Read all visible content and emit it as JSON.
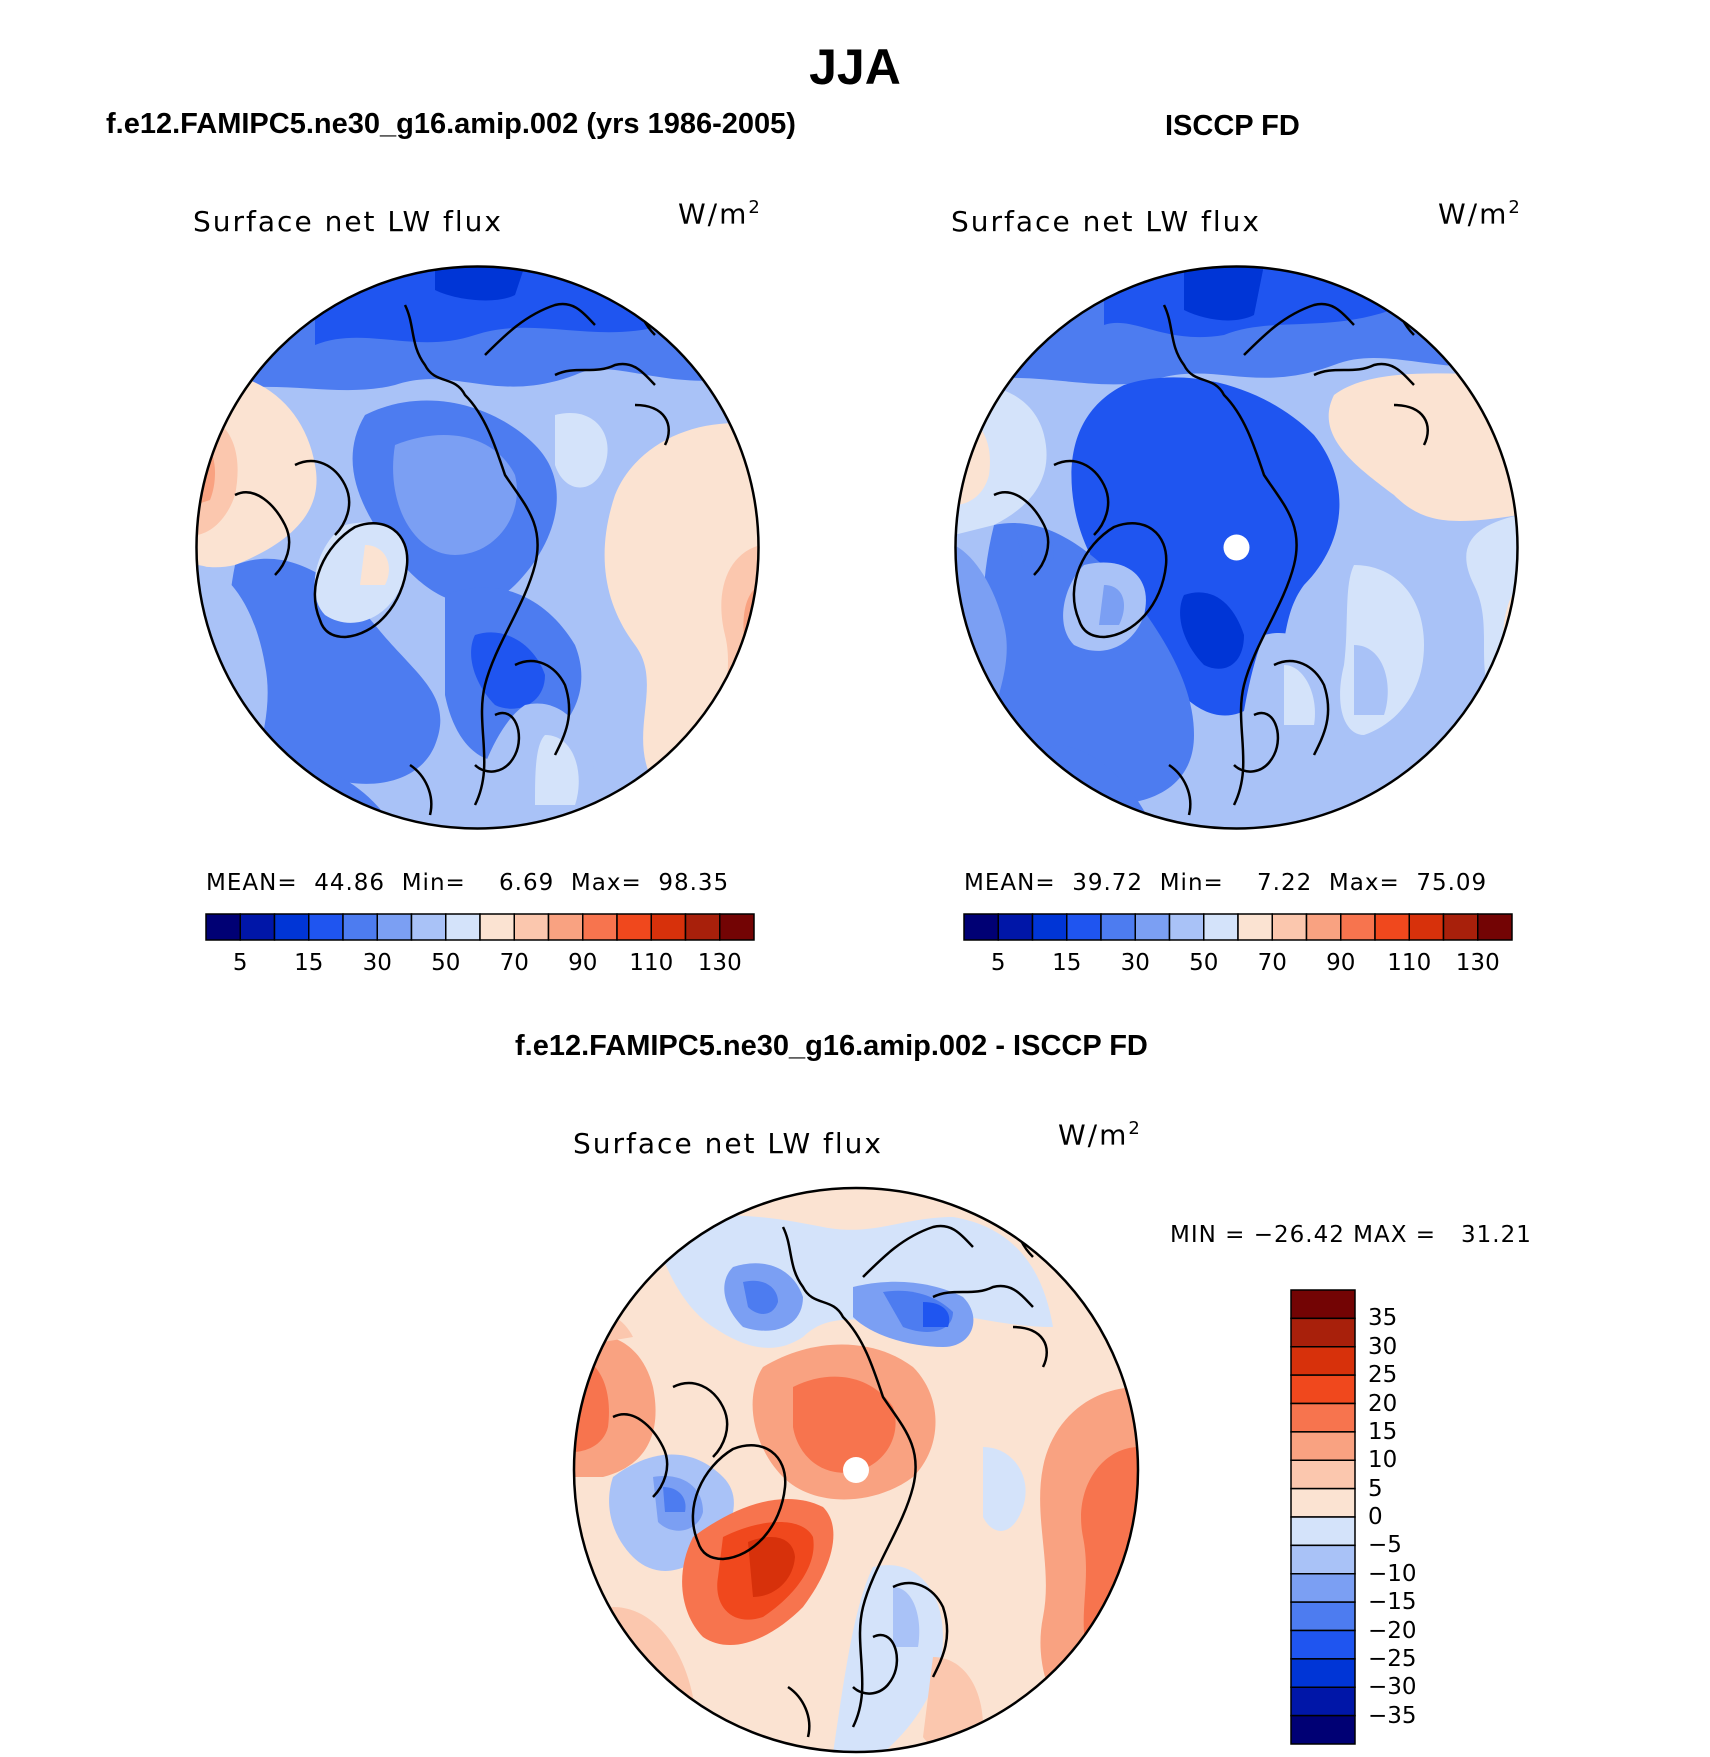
{
  "figure": {
    "title": "JJA"
  },
  "panels": [
    {
      "title": "f.e12.FAMIPC5.ne30_g16.amip.002 (yrs 1986-2005)",
      "variable": "Surface net LW flux",
      "units_base": "W/m",
      "units_exp": "2",
      "stats": {
        "mean_label": "MEAN=",
        "mean": "44.86",
        "min_label": "Min=",
        "min": "6.69",
        "max_label": "Max=",
        "max": "98.35"
      }
    },
    {
      "title": "ISCCP FD",
      "variable": "Surface net LW flux",
      "units_base": "W/m",
      "units_exp": "2",
      "stats": {
        "mean_label": "MEAN=",
        "mean": "39.72",
        "min_label": "Min=",
        "min": "7.22",
        "max_label": "Max=",
        "max": "75.09"
      }
    },
    {
      "title": "f.e12.FAMIPC5.ne30_g16.amip.002 - ISCCP FD",
      "variable": "Surface net LW flux",
      "units_base": "W/m",
      "units_exp": "2",
      "stats_text": "MIN = −26.42 MAX =   31.21"
    }
  ],
  "colorbar_abs": {
    "colors": [
      "#000074",
      "#0016a8",
      "#0035d6",
      "#1f55f0",
      "#4d7cf0",
      "#7b9ff3",
      "#a9c2f7",
      "#d4e3fa",
      "#fbe3d2",
      "#fbc7ae",
      "#f9a281",
      "#f7744e",
      "#f0481d",
      "#d7310b",
      "#a8200b",
      "#730404"
    ],
    "tick_labels": [
      "5",
      "15",
      "30",
      "50",
      "70",
      "90",
      "110",
      "130"
    ]
  },
  "colorbar_diff": {
    "colors": [
      "#730404",
      "#a8200b",
      "#d7310b",
      "#f0481d",
      "#f7744e",
      "#f9a281",
      "#fbc7ae",
      "#fbe3d2",
      "#d4e3fa",
      "#a9c2f7",
      "#7b9ff3",
      "#4d7cf0",
      "#1f55f0",
      "#0035d6",
      "#0016a8",
      "#000074"
    ],
    "tick_labels": [
      "35",
      "30",
      "25",
      "20",
      "15",
      "10",
      "5",
      "0",
      "−5",
      "−10",
      "−15",
      "−20",
      "−25",
      "−30",
      "−35"
    ]
  },
  "map_colors": {
    "deep_blue": "#1f55f0",
    "mid_blue": "#4d7cf0",
    "light_blue": "#7b9ff3",
    "pale_blue": "#a9c2f7",
    "very_pale_blue": "#d4e3fa",
    "pale_orange": "#fbe3d2",
    "light_orange": "#fbc7ae",
    "orange": "#f9a281",
    "deep_orange": "#f7744e",
    "red_orange": "#f0481d"
  }
}
